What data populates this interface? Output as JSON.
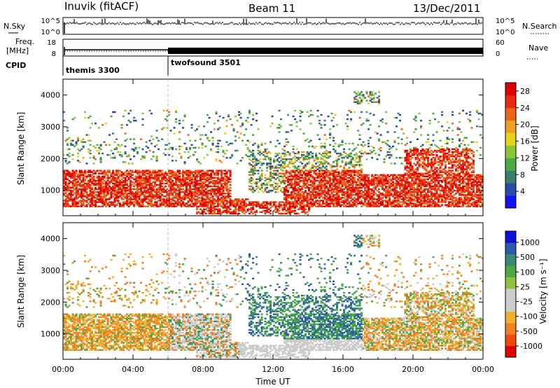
{
  "header": {
    "station": "Inuvik (fitACF)",
    "beam": "Beam 11",
    "date": "13/Dec/2011"
  },
  "strips": {
    "nsky_label": "N.Sky",
    "nsky_ticks": [
      "10^5",
      "10^0"
    ],
    "nsearch_label": "N.Search",
    "nsearch_ticks": [
      "10^5",
      "10^0"
    ],
    "freq_label_1": "Freq.",
    "freq_label_2": "[MHz]",
    "freq_ticks": [
      "18",
      "8"
    ],
    "nave_label": "Nave",
    "nave_ticks": [
      "60",
      "0"
    ],
    "cpid_label": "CPID",
    "cpid_segments": [
      {
        "name": "themis 3300",
        "start_hour": 0,
        "end_hour": 6
      },
      {
        "name": "twofsound 3501",
        "start_hour": 6,
        "end_hour": 24
      }
    ]
  },
  "colors": {
    "power_scale": [
      "#1010ff",
      "#2a4aa8",
      "#3a7f6a",
      "#4caa44",
      "#88c838",
      "#e8d020",
      "#f0a020",
      "#f06418",
      "#e82a10",
      "#e00000"
    ],
    "velocity_scale": [
      "#e00000",
      "#f04a10",
      "#f08020",
      "#f0b030",
      "#cccccc",
      "#cccccc",
      "#90c040",
      "#4caa44",
      "#3a8a70",
      "#2a5aa8",
      "#1010dd"
    ]
  },
  "chart_data": [
    {
      "type": "heatmap",
      "name": "power",
      "xlabel": "",
      "ylabel": "Slant Range [km]",
      "x_ticks": [
        "00:00",
        "04:00",
        "08:00",
        "12:00",
        "16:00",
        "20:00",
        "00:00"
      ],
      "y_ticks": [
        1000,
        2000,
        3000,
        4000
      ],
      "ylim": [
        200,
        4500
      ],
      "xlim_hours": [
        0,
        24
      ],
      "colorbar_label": "Power [dB]",
      "colorbar_ticks": [
        4,
        8,
        12,
        16,
        20,
        24,
        28
      ],
      "colorbar_range": [
        0,
        30
      ]
    },
    {
      "type": "heatmap",
      "name": "velocity",
      "xlabel": "Time UT",
      "ylabel": "Slant Range [km]",
      "x_ticks": [
        "00:00",
        "04:00",
        "08:00",
        "12:00",
        "16:00",
        "20:00",
        "00:00"
      ],
      "y_ticks": [
        1000,
        2000,
        3000,
        4000
      ],
      "ylim": [
        200,
        4500
      ],
      "xlim_hours": [
        0,
        24
      ],
      "colorbar_label": "Velocity [m s⁻¹]",
      "colorbar_ticks": [
        "1000",
        "500",
        "100",
        "25",
        "-25",
        "-100",
        "-500",
        "-1000"
      ]
    }
  ]
}
